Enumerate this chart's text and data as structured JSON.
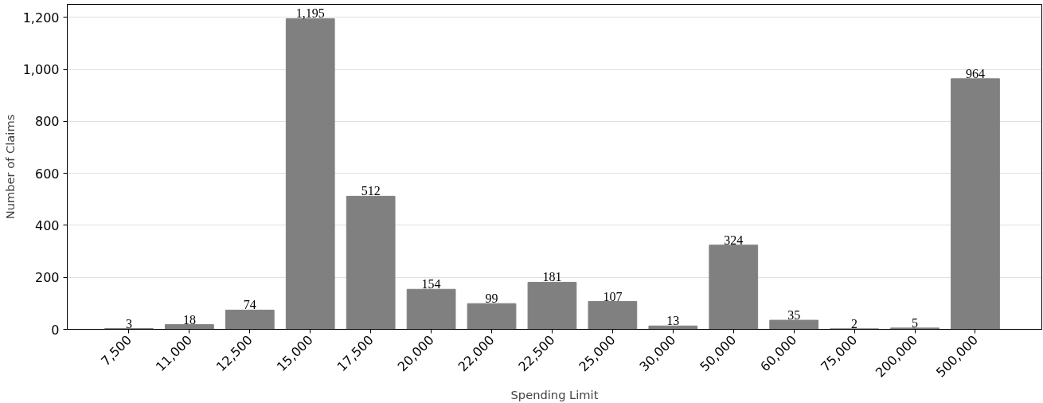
{
  "chart_data": {
    "type": "bar",
    "xlabel": "Spending Limit",
    "ylabel": "Number of Claims",
    "categories": [
      "7,500",
      "11,000",
      "12,500",
      "15,000",
      "17,500",
      "20,000",
      "22,000",
      "22,500",
      "25,000",
      "30,000",
      "50,000",
      "60,000",
      "75,000",
      "200,000",
      "500,000"
    ],
    "values": [
      3,
      18,
      74,
      1195,
      512,
      154,
      99,
      181,
      107,
      13,
      324,
      35,
      2,
      5,
      964
    ],
    "value_labels": [
      "3",
      "18",
      "74",
      "1,195",
      "512",
      "154",
      "99",
      "181",
      "107",
      "13",
      "324",
      "35",
      "2",
      "5",
      "964"
    ],
    "color": "#808080",
    "ylim": [
      0,
      1250
    ],
    "yticks": [
      0,
      200,
      400,
      600,
      800,
      {
        "value": 1000,
        "label": "1,000"
      },
      {
        "value": 1200,
        "label": "1,200"
      }
    ],
    "grid": "y"
  }
}
